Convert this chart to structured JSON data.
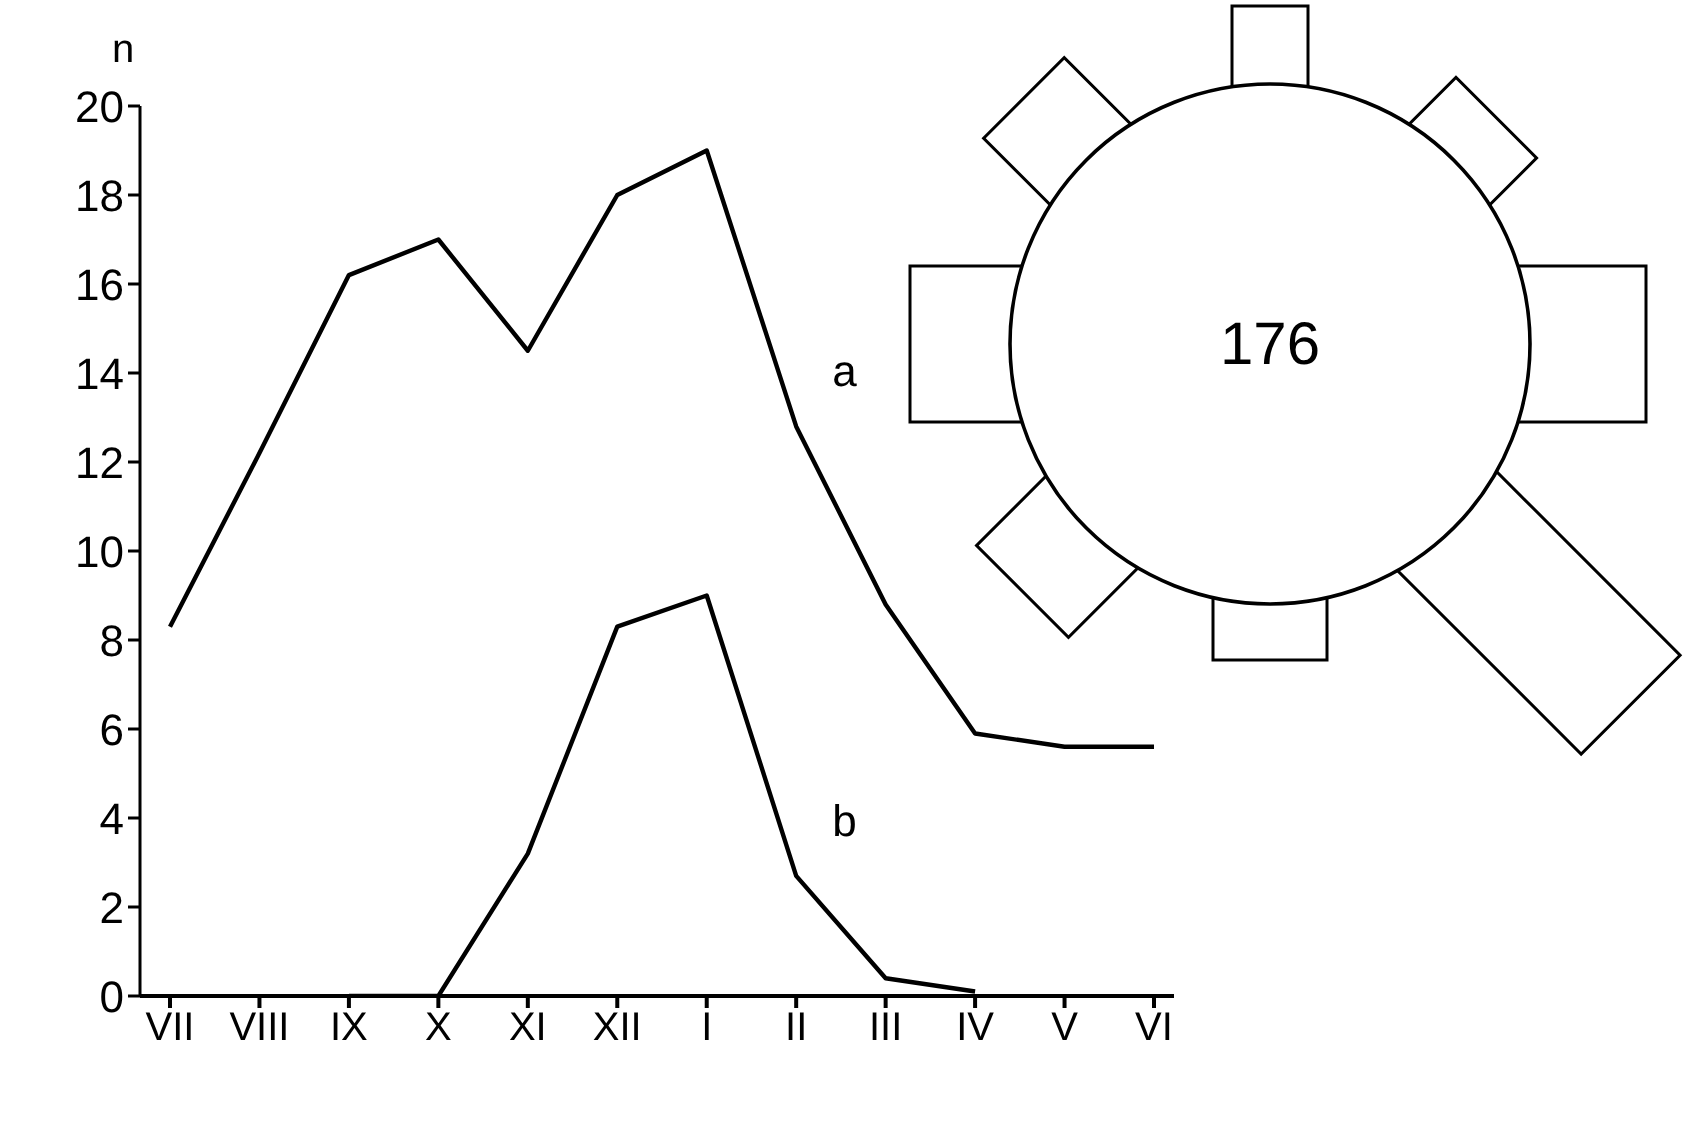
{
  "chart_data": [
    {
      "type": "line",
      "ylabel": "n",
      "categories": [
        "VII",
        "VIII",
        "IX",
        "X",
        "XI",
        "XII",
        "I",
        "II",
        "III",
        "IV",
        "V",
        "VI"
      ],
      "series": [
        {
          "name": "a",
          "color": "#000000",
          "values": [
            8.3,
            12.2,
            16.2,
            17.0,
            14.5,
            18.0,
            19.0,
            12.8,
            8.8,
            5.9,
            5.6,
            5.6
          ]
        },
        {
          "name": "b",
          "color": "#000000",
          "values": [
            null,
            null,
            0,
            0,
            3.2,
            8.3,
            9.0,
            2.7,
            0.4,
            0.1,
            null,
            null
          ]
        }
      ],
      "ylim": [
        0,
        20
      ],
      "yticks": [
        0,
        2,
        4,
        6,
        8,
        10,
        12,
        14,
        16,
        18,
        20
      ]
    },
    {
      "type": "other",
      "annotations": [
        "176"
      ]
    }
  ]
}
